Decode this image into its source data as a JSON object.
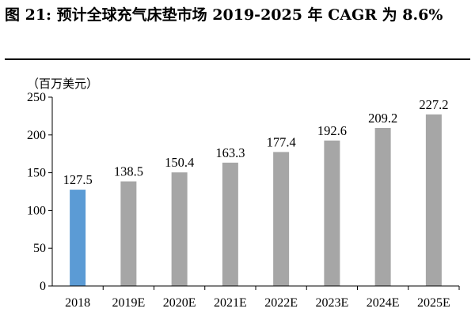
{
  "header": {
    "title": "图 21: 预计全球充气床垫市场 2019-2025 年 CAGR 为 8.6%"
  },
  "chart_data": {
    "type": "bar",
    "title": "",
    "unit": "（百万美元）",
    "xlabel": "",
    "ylabel": "",
    "categories": [
      "2018",
      "2019E",
      "2020E",
      "2021E",
      "2022E",
      "2023E",
      "2024E",
      "2025E"
    ],
    "values": [
      127.5,
      138.5,
      150.4,
      163.3,
      177.4,
      192.6,
      209.2,
      227.2
    ],
    "data_labels": [
      "127.5",
      "138.5",
      "150.4",
      "163.3",
      "177.4",
      "192.6",
      "209.2",
      "227.2"
    ],
    "ylim": [
      0,
      250
    ],
    "yticks": [
      0,
      50,
      100,
      150,
      200,
      250
    ],
    "ytick_labels": [
      "0",
      "50",
      "100",
      "150",
      "200",
      "250"
    ],
    "grid": false,
    "legend": "none",
    "colors": {
      "actual": "#5B9BD5",
      "forecast": "#A6A6A6"
    },
    "highlight_index": 0
  }
}
